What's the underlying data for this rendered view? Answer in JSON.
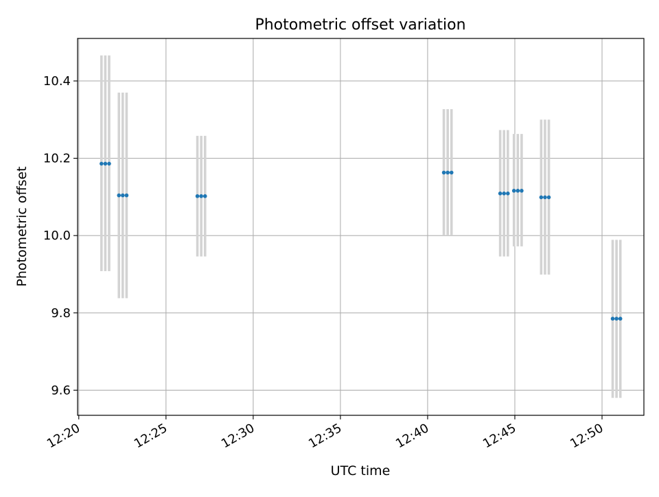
{
  "chart_data": {
    "type": "scatter",
    "title": "Photometric offset variation",
    "xlabel": "UTC time",
    "ylabel": "Photometric offset",
    "x_unit": "UTC clock time (HH:MM)",
    "xlim": [
      "12:19.93",
      "12:52.40"
    ],
    "ylim": [
      9.535,
      10.51
    ],
    "x_ticks": [
      "12:20",
      "12:25",
      "12:30",
      "12:35",
      "12:40",
      "12:45",
      "12:50"
    ],
    "y_ticks": [
      9.6,
      9.8,
      10.0,
      10.2,
      10.4
    ],
    "y_tick_labels": [
      "9.6",
      "9.8",
      "10.0",
      "10.2",
      "10.4"
    ],
    "grid": true,
    "series": [
      {
        "marker_color": "#1f77b4",
        "errorbar_color": "#d3d3d3",
        "groups": [
          {
            "times": [
              "12:21.30",
              "12:21.52",
              "12:21.74"
            ],
            "value": 10.186,
            "lower": 9.908,
            "upper": 10.466
          },
          {
            "times": [
              "12:22.30",
              "12:22.52",
              "12:22.74"
            ],
            "value": 10.104,
            "lower": 9.838,
            "upper": 10.37
          },
          {
            "times": [
              "12:26.80",
              "12:27.02",
              "12:27.24"
            ],
            "value": 10.102,
            "lower": 9.946,
            "upper": 10.258
          },
          {
            "times": [
              "12:40.93",
              "12:41.15",
              "12:41.37"
            ],
            "value": 10.163,
            "lower": 10.0,
            "upper": 10.327
          },
          {
            "times": [
              "12:44.16",
              "12:44.38",
              "12:44.60"
            ],
            "value": 10.109,
            "lower": 9.946,
            "upper": 10.273
          },
          {
            "times": [
              "12:44.95",
              "12:45.17",
              "12:45.39"
            ],
            "value": 10.116,
            "lower": 9.972,
            "upper": 10.263
          },
          {
            "times": [
              "12:46.51",
              "12:46.73",
              "12:46.95"
            ],
            "value": 10.099,
            "lower": 9.899,
            "upper": 10.3
          },
          {
            "times": [
              "12:50.61",
              "12:50.83",
              "12:51.05"
            ],
            "value": 9.785,
            "lower": 9.58,
            "upper": 9.989
          }
        ]
      }
    ]
  }
}
